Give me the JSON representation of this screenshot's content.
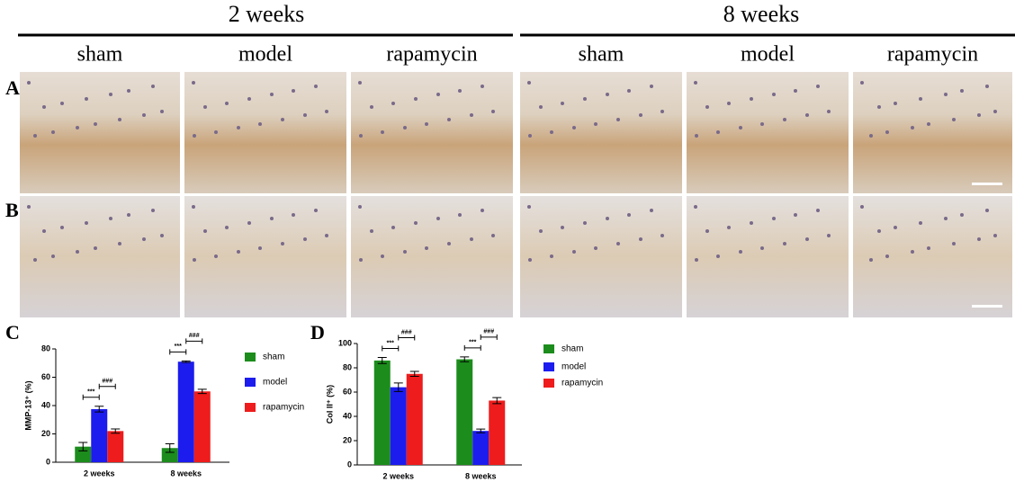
{
  "header": {
    "periods": [
      {
        "title": "2 weeks",
        "columns": [
          "sham",
          "model",
          "rapamycin"
        ]
      },
      {
        "title": "8 weeks",
        "columns": [
          "sham",
          "model",
          "rapamycin"
        ]
      }
    ]
  },
  "panel_labels": [
    "A",
    "B",
    "C",
    "D"
  ],
  "chart_data": [
    {
      "type": "bar",
      "y_label": "MMP-13⁺ (%)",
      "categories": [
        "2 weeks",
        "8 weeks"
      ],
      "series": [
        {
          "name": "sham",
          "color": "#1c8c1c",
          "values": [
            11,
            10
          ],
          "errors": [
            3,
            3
          ]
        },
        {
          "name": "model",
          "color": "#1c1cee",
          "values": [
            37.5,
            71
          ],
          "errors": [
            2,
            0.5
          ]
        },
        {
          "name": "rapamycin",
          "color": "#ee1c1c",
          "values": [
            22,
            50
          ],
          "errors": [
            1.5,
            1.5
          ]
        }
      ],
      "ylim": [
        0,
        80
      ],
      "yticks": [
        0,
        20,
        40,
        60,
        80
      ],
      "annotations": [
        {
          "text": "***",
          "category": "2 weeks",
          "series": [
            "sham",
            "model"
          ]
        },
        {
          "text": "###",
          "category": "2 weeks",
          "series": [
            "model",
            "rapamycin"
          ]
        },
        {
          "text": "***",
          "category": "8 weeks",
          "series": [
            "sham",
            "model"
          ]
        },
        {
          "text": "###",
          "category": "8 weeks",
          "series": [
            "model",
            "rapamycin"
          ]
        }
      ]
    },
    {
      "type": "bar",
      "y_label": "Col II⁺ (%)",
      "categories": [
        "2 weeks",
        "8 weeks"
      ],
      "series": [
        {
          "name": "sham",
          "color": "#1c8c1c",
          "values": [
            86,
            87
          ],
          "errors": [
            2.5,
            2
          ]
        },
        {
          "name": "model",
          "color": "#1c1cee",
          "values": [
            64,
            28
          ],
          "errors": [
            3.5,
            1.5
          ]
        },
        {
          "name": "rapamycin",
          "color": "#ee1c1c",
          "values": [
            75,
            53
          ],
          "errors": [
            2,
            2.5
          ]
        }
      ],
      "ylim": [
        0,
        100
      ],
      "yticks": [
        0,
        20,
        40,
        60,
        80,
        100
      ],
      "annotations": [
        {
          "text": "***",
          "category": "2 weeks",
          "series": [
            "sham",
            "model"
          ]
        },
        {
          "text": "###",
          "category": "2 weeks",
          "series": [
            "model",
            "rapamycin"
          ]
        },
        {
          "text": "***",
          "category": "8 weeks",
          "series": [
            "sham",
            "model"
          ]
        },
        {
          "text": "###",
          "category": "8 weeks",
          "series": [
            "model",
            "rapamycin"
          ]
        }
      ]
    }
  ]
}
